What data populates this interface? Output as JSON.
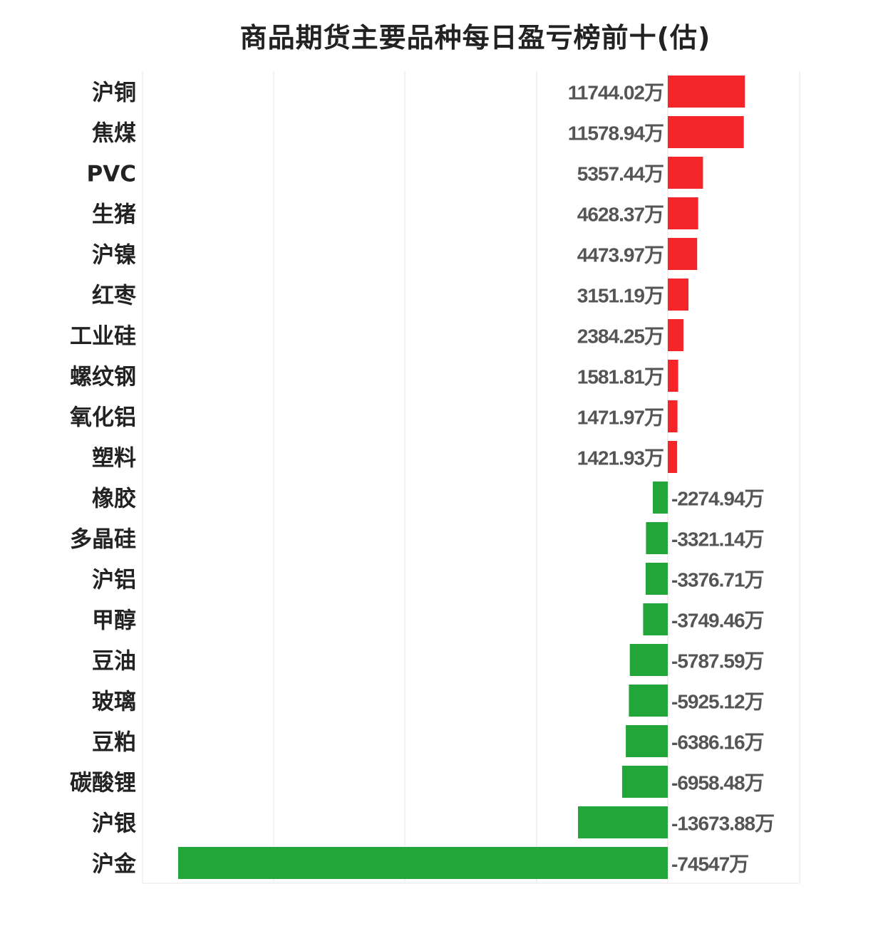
{
  "chart_data": {
    "type": "bar",
    "orientation": "horizontal",
    "title": "商品期货主要品种每日盈亏榜前十(估)",
    "xlabel": "",
    "ylabel": "",
    "unit": "万",
    "xlim": [
      -80000,
      20000
    ],
    "grid": true,
    "categories": [
      "沪铜",
      "焦煤",
      "PVC",
      "生猪",
      "沪镍",
      "红枣",
      "工业硅",
      "螺纹钢",
      "氧化铝",
      "塑料",
      "橡胶",
      "多晶硅",
      "沪铝",
      "甲醇",
      "豆油",
      "玻璃",
      "豆粕",
      "碳酸锂",
      "沪银",
      "沪金"
    ],
    "values": [
      11744.02,
      11578.94,
      5357.44,
      4628.37,
      4473.97,
      3151.19,
      2384.25,
      1581.81,
      1471.97,
      1421.93,
      -2274.94,
      -3321.14,
      -3376.71,
      -3749.46,
      -5787.59,
      -5925.12,
      -6386.16,
      -6958.48,
      -13673.88,
      -74547
    ],
    "labels": [
      "11744.02万",
      "11578.94万",
      "5357.44万",
      "4628.37万",
      "4473.97万",
      "3151.19万",
      "2384.25万",
      "1581.81万",
      "1471.97万",
      "1421.93万",
      "-2274.94万",
      "-3321.14万",
      "-3376.71万",
      "-3749.46万",
      "-5787.59万",
      "-5925.12万",
      "-6386.16万",
      "-6958.48万",
      "-13673.88万",
      "-74547万"
    ],
    "colors": {
      "positive": "#f5262a",
      "negative": "#22a63a",
      "grid": "#e6e6e6",
      "category_text": "#222222",
      "value_text": "#555555"
    }
  }
}
